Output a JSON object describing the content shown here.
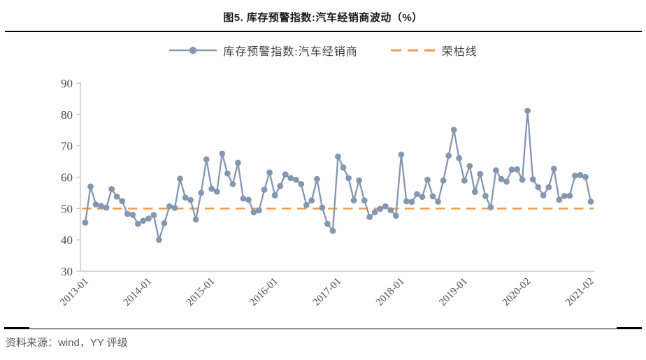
{
  "title": "图5. 库存预警指数:汽车经销商波动（%）",
  "source_note": "资料来源：wind，YY 评级",
  "legend": [
    {
      "label": "库存预警指数:汽车经销商",
      "style": "line-marker",
      "color": "#8497b0"
    },
    {
      "label": "荣枯线",
      "style": "dashed",
      "color": "#f09e4f"
    }
  ],
  "colors": {
    "series": "#8497b0",
    "threshold": "#f09e4f",
    "axis": "#bfbfbf",
    "tick_text": "#4d4d4d"
  },
  "chart_data": {
    "type": "line",
    "title": "图5. 库存预警指数:汽车经销商波动（%）",
    "xlabel": "",
    "ylabel": "",
    "ylim": [
      30,
      90
    ],
    "y_ticks": [
      30,
      40,
      50,
      60,
      70,
      80,
      90
    ],
    "grid": false,
    "legend_position": "top",
    "x": [
      "2013-01",
      "2013-02",
      "2013-03",
      "2013-04",
      "2013-05",
      "2013-06",
      "2013-07",
      "2013-08",
      "2013-09",
      "2013-10",
      "2013-11",
      "2013-12",
      "2014-01",
      "2014-02",
      "2014-03",
      "2014-04",
      "2014-05",
      "2014-06",
      "2014-07",
      "2014-08",
      "2014-09",
      "2014-10",
      "2014-11",
      "2014-12",
      "2015-01",
      "2015-02",
      "2015-03",
      "2015-04",
      "2015-05",
      "2015-06",
      "2015-07",
      "2015-08",
      "2015-09",
      "2015-10",
      "2015-11",
      "2015-12",
      "2016-01",
      "2016-02",
      "2016-03",
      "2016-04",
      "2016-05",
      "2016-06",
      "2016-07",
      "2016-08",
      "2016-09",
      "2016-10",
      "2016-11",
      "2016-12",
      "2017-01",
      "2017-02",
      "2017-03",
      "2017-04",
      "2017-05",
      "2017-06",
      "2017-07",
      "2017-08",
      "2017-09",
      "2017-10",
      "2017-11",
      "2017-12",
      "2018-01",
      "2018-02",
      "2018-03",
      "2018-04",
      "2018-05",
      "2018-06",
      "2018-07",
      "2018-08",
      "2018-09",
      "2018-10",
      "2018-11",
      "2018-12",
      "2019-01",
      "2019-02",
      "2019-03",
      "2019-04",
      "2019-05",
      "2019-06",
      "2019-07",
      "2019-08",
      "2019-09",
      "2019-10",
      "2019-11",
      "2019-12",
      "2020-02",
      "2020-03",
      "2020-04",
      "2020-05",
      "2020-06",
      "2020-07",
      "2020-08",
      "2020-09",
      "2020-10",
      "2020-11",
      "2020-12",
      "2021-01",
      "2021-02"
    ],
    "series": [
      {
        "name": "库存预警指数:汽车经销商",
        "values": [
          45.5,
          57.0,
          51.3,
          50.8,
          50.3,
          56.2,
          53.8,
          52.4,
          48.3,
          48.0,
          45.1,
          46.1,
          46.8,
          47.9,
          40.0,
          45.3,
          50.7,
          50.2,
          59.5,
          53.5,
          52.7,
          46.5,
          55.0,
          65.7,
          56.3,
          55.4,
          67.5,
          61.2,
          57.8,
          64.6,
          53.2,
          52.8,
          48.8,
          49.4,
          56.0,
          61.5,
          54.2,
          57.2,
          60.9,
          59.7,
          59.2,
          57.8,
          51.1,
          52.6,
          59.4,
          50.3,
          45.1,
          42.9,
          66.6,
          63.1,
          59.7,
          52.6,
          59.0,
          52.6,
          47.3,
          48.8,
          49.9,
          50.7,
          49.5,
          47.7,
          67.2,
          52.3,
          52.1,
          54.6,
          53.7,
          59.2,
          53.9,
          52.2,
          58.9,
          66.9,
          75.1,
          66.1,
          58.9,
          63.6,
          55.3,
          61.0,
          54.0,
          50.4,
          62.2,
          59.4,
          58.6,
          62.4,
          62.5,
          59.2,
          81.2,
          59.3,
          56.8,
          54.2,
          56.8,
          62.7,
          52.8,
          54.0,
          54.1,
          60.5,
          60.7,
          60.1,
          52.2
        ]
      }
    ],
    "reference_line": {
      "name": "荣枯线",
      "value": 50
    },
    "x_tick_labels": [
      "2013-01",
      "2014-01",
      "2015-01",
      "2016-01",
      "2017-01",
      "2018-01",
      "2019-01",
      "2020-02",
      "2021-02"
    ]
  }
}
